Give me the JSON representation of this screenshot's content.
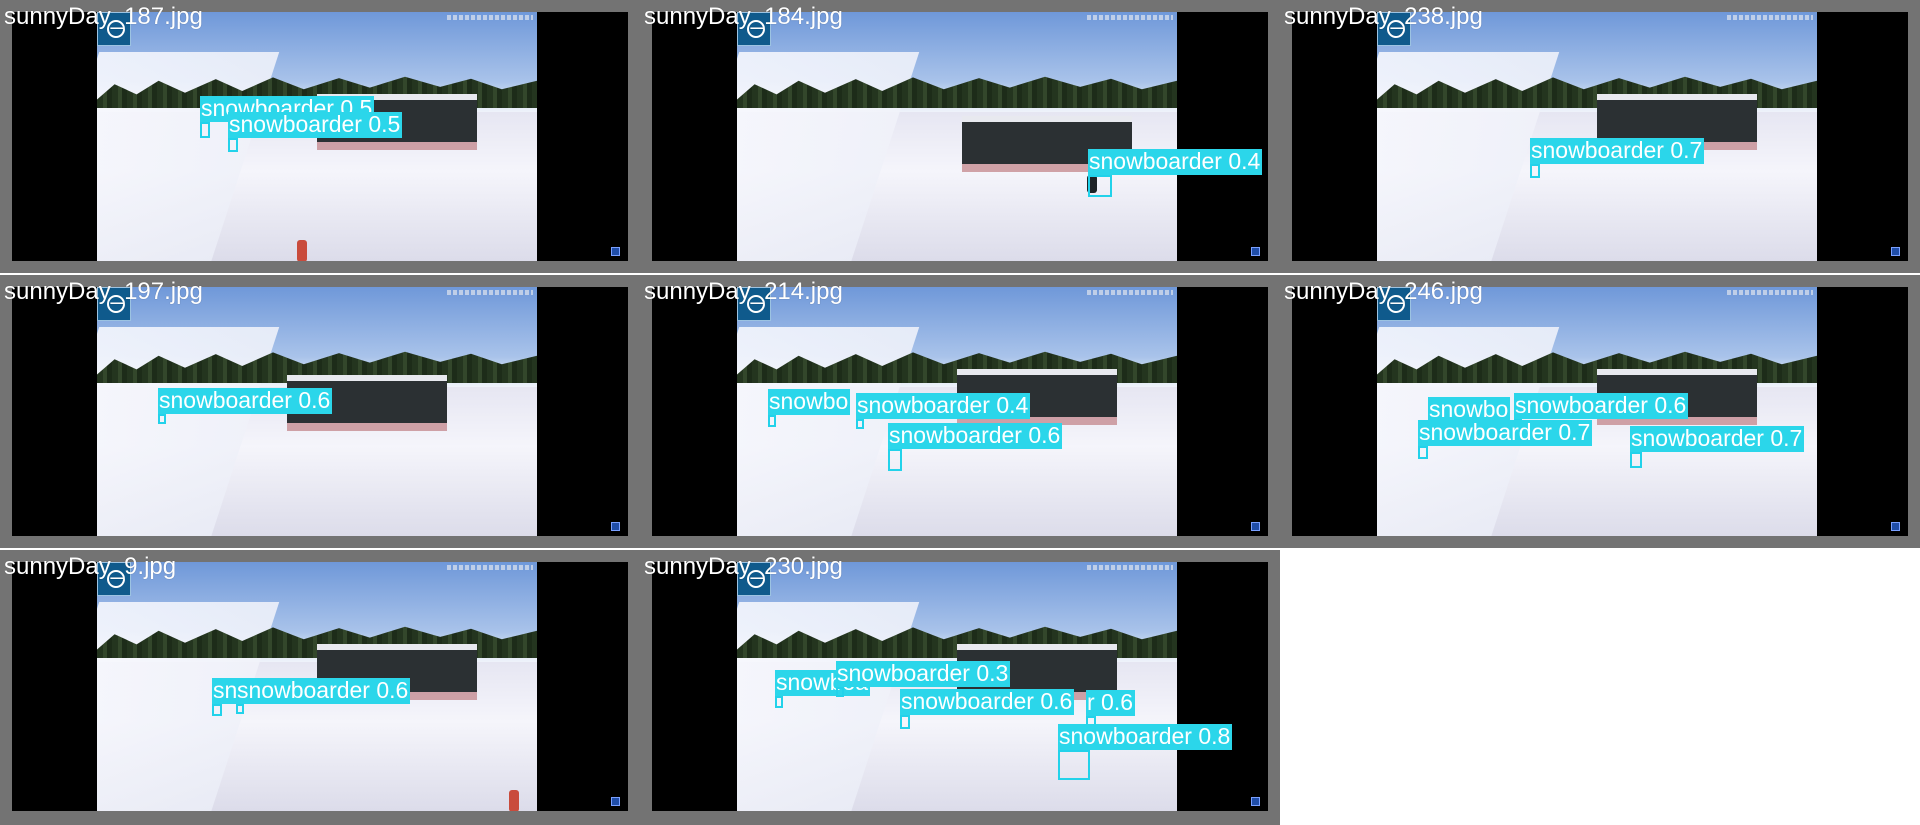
{
  "grid": {
    "tiles": [
      {
        "name": "sunnyDay_187.jpg",
        "detections": [
          {
            "label": "snowboarder 0.5",
            "confidence": 0.5
          },
          {
            "label": "snowboarder 0.5",
            "confidence": 0.5
          }
        ]
      },
      {
        "name": "sunnyDay_184.jpg",
        "detections": [
          {
            "label": "snowboarder 0.4",
            "confidence": 0.4
          }
        ]
      },
      {
        "name": "sunnyDay_238.jpg",
        "detections": [
          {
            "label": "snowboarder 0.7",
            "confidence": 0.7
          }
        ]
      },
      {
        "name": "sunnyDay_197.jpg",
        "detections": [
          {
            "label": "snowboarder 0.6",
            "confidence": 0.6
          }
        ]
      },
      {
        "name": "sunnyDay_214.jpg",
        "detections": [
          {
            "label": "snowbo",
            "confidence": null
          },
          {
            "label": "snowboarder 0.4",
            "confidence": 0.4
          },
          {
            "label": "snowboarder 0.6",
            "confidence": 0.6
          }
        ]
      },
      {
        "name": "sunnyDay_246.jpg",
        "detections": [
          {
            "label": "snowbo",
            "confidence": null
          },
          {
            "label": "snowboarder 0.6",
            "confidence": 0.6
          },
          {
            "label": "snowboarder 0.7",
            "confidence": 0.7
          },
          {
            "label": "snowboarder 0.7",
            "confidence": 0.7
          }
        ]
      },
      {
        "name": "sunnyDay_9.jpg",
        "detections": [
          {
            "label": "sn",
            "confidence": null
          },
          {
            "label": "snowboarder 0.6",
            "confidence": 0.6
          }
        ]
      },
      {
        "name": "sunnyDay_230.jpg",
        "detections": [
          {
            "label": "snowboa",
            "confidence": null
          },
          {
            "label": "snowboarder 0.3",
            "confidence": 0.3
          },
          {
            "label": "snowboarder 0.6",
            "confidence": 0.6
          },
          {
            "label": "r 0.6",
            "confidence": 0.6
          },
          {
            "label": "snowboarder 0.8",
            "confidence": 0.8
          }
        ]
      }
    ]
  },
  "colors": {
    "tile_border": "#737373",
    "letterbox": "#000000",
    "detection": "#2bd6ea",
    "label_text": "#ffffff"
  }
}
